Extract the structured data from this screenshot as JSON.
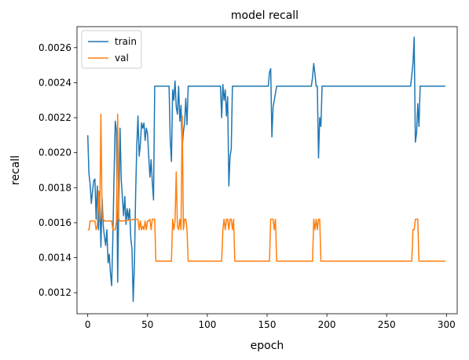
{
  "chart_data": {
    "type": "line",
    "title": "model recall",
    "xlabel": "epoch",
    "ylabel": "recall",
    "xlim": [
      -9,
      309
    ],
    "ylim": [
      0.00108,
      0.00272
    ],
    "x_ticks": [
      0,
      50,
      100,
      150,
      200,
      250,
      300
    ],
    "y_ticks": [
      0.0012,
      0.0014,
      0.0016,
      0.0018,
      0.002,
      0.0022,
      0.0024,
      0.0026
    ],
    "y_tick_labels": [
      "0.0012",
      "0.0014",
      "0.0016",
      "0.0018",
      "0.0020",
      "0.0022",
      "0.0024",
      "0.0026"
    ],
    "grid": false,
    "legend_position": "top-left",
    "series": [
      {
        "name": "train",
        "color": "#1f77b4",
        "points": [
          [
            0,
            0.0021
          ],
          [
            1,
            0.00188
          ],
          [
            2,
            0.00182
          ],
          [
            3,
            0.00171
          ],
          [
            4,
            0.00178
          ],
          [
            5,
            0.00184
          ],
          [
            6,
            0.00185
          ],
          [
            7,
            0.00162
          ],
          [
            8,
            0.00181
          ],
          [
            9,
            0.00156
          ],
          [
            10,
            0.00178
          ],
          [
            11,
            0.00146
          ],
          [
            12,
            0.00174
          ],
          [
            13,
            0.00158
          ],
          [
            14,
            0.00152
          ],
          [
            15,
            0.00147
          ],
          [
            16,
            0.00156
          ],
          [
            17,
            0.00137
          ],
          [
            18,
            0.00142
          ],
          [
            19,
            0.00131
          ],
          [
            20,
            0.00124
          ],
          [
            21,
            0.00152
          ],
          [
            22,
            0.00187
          ],
          [
            23,
            0.00218
          ],
          [
            24,
            0.00212
          ],
          [
            25,
            0.00126
          ],
          [
            26,
            0.00172
          ],
          [
            27,
            0.00214
          ],
          [
            28,
            0.00185
          ],
          [
            29,
            0.00174
          ],
          [
            30,
            0.00164
          ],
          [
            31,
            0.00175
          ],
          [
            32,
            0.00159
          ],
          [
            33,
            0.00168
          ],
          [
            34,
            0.00162
          ],
          [
            35,
            0.00168
          ],
          [
            36,
            0.00151
          ],
          [
            37,
            0.00145
          ],
          [
            38,
            0.00115
          ],
          [
            39,
            0.00135
          ],
          [
            40,
            0.00175
          ],
          [
            41,
            0.00204
          ],
          [
            42,
            0.00221
          ],
          [
            43,
            0.00198
          ],
          [
            44,
            0.00205
          ],
          [
            45,
            0.00217
          ],
          [
            46,
            0.00214
          ],
          [
            47,
            0.00217
          ],
          [
            48,
            0.00207
          ],
          [
            49,
            0.00214
          ],
          [
            50,
            0.00211
          ],
          [
            51,
            0.00198
          ],
          [
            52,
            0.00186
          ],
          [
            53,
            0.00196
          ],
          [
            54,
            0.00183
          ],
          [
            55,
            0.00173
          ],
          [
            56,
            0.00238
          ],
          [
            57,
            0.00238
          ],
          [
            60,
            0.00238
          ],
          [
            65,
            0.00238
          ],
          [
            68,
            0.00238
          ],
          [
            69,
            0.00207
          ],
          [
            70,
            0.00195
          ],
          [
            71,
            0.00236
          ],
          [
            72,
            0.0023
          ],
          [
            73,
            0.00241
          ],
          [
            74,
            0.00226
          ],
          [
            75,
            0.00222
          ],
          [
            76,
            0.00238
          ],
          [
            77,
            0.00218
          ],
          [
            78,
            0.00227
          ],
          [
            79,
            0.00203
          ],
          [
            80,
            0.00212
          ],
          [
            81,
            0.00217
          ],
          [
            82,
            0.00231
          ],
          [
            83,
            0.00216
          ],
          [
            84,
            0.00238
          ],
          [
            85,
            0.00238
          ],
          [
            90,
            0.00238
          ],
          [
            100,
            0.00238
          ],
          [
            110,
            0.00238
          ],
          [
            111,
            0.00238
          ],
          [
            112,
            0.0022
          ],
          [
            113,
            0.00239
          ],
          [
            114,
            0.0023
          ],
          [
            115,
            0.00236
          ],
          [
            116,
            0.00221
          ],
          [
            117,
            0.00232
          ],
          [
            118,
            0.00181
          ],
          [
            119,
            0.00198
          ],
          [
            120,
            0.00202
          ],
          [
            121,
            0.00238
          ],
          [
            122,
            0.00238
          ],
          [
            130,
            0.00238
          ],
          [
            140,
            0.00238
          ],
          [
            150,
            0.00238
          ],
          [
            151,
            0.00238
          ],
          [
            152,
            0.00246
          ],
          [
            153,
            0.00248
          ],
          [
            154,
            0.00209
          ],
          [
            155,
            0.00226
          ],
          [
            156,
            0.0023
          ],
          [
            157,
            0.00234
          ],
          [
            158,
            0.00238
          ],
          [
            160,
            0.00238
          ],
          [
            170,
            0.00238
          ],
          [
            180,
            0.00238
          ],
          [
            187,
            0.00238
          ],
          [
            188,
            0.00243
          ],
          [
            189,
            0.00251
          ],
          [
            190,
            0.00245
          ],
          [
            191,
            0.00238
          ],
          [
            192,
            0.00238
          ],
          [
            193,
            0.00197
          ],
          [
            194,
            0.0022
          ],
          [
            195,
            0.00215
          ],
          [
            196,
            0.00238
          ],
          [
            197,
            0.00238
          ],
          [
            210,
            0.00238
          ],
          [
            230,
            0.00238
          ],
          [
            250,
            0.00238
          ],
          [
            270,
            0.00238
          ],
          [
            271,
            0.00244
          ],
          [
            272,
            0.00251
          ],
          [
            273,
            0.00266
          ],
          [
            274,
            0.00206
          ],
          [
            275,
            0.00211
          ],
          [
            276,
            0.00228
          ],
          [
            277,
            0.00215
          ],
          [
            278,
            0.00238
          ],
          [
            280,
            0.00238
          ],
          [
            290,
            0.00238
          ],
          [
            299,
            0.00238
          ]
        ]
      },
      {
        "name": "val",
        "color": "#ff7f0e",
        "points": [
          [
            0,
            0.00156
          ],
          [
            1,
            0.00156
          ],
          [
            2,
            0.00161
          ],
          [
            3,
            0.00161
          ],
          [
            4,
            0.00161
          ],
          [
            5,
            0.00161
          ],
          [
            6,
            0.00161
          ],
          [
            7,
            0.00156
          ],
          [
            8,
            0.00158
          ],
          [
            9,
            0.00178
          ],
          [
            10,
            0.00161
          ],
          [
            11,
            0.00222
          ],
          [
            12,
            0.00163
          ],
          [
            13,
            0.00162
          ],
          [
            14,
            0.00161
          ],
          [
            15,
            0.00161
          ],
          [
            20,
            0.00161
          ],
          [
            21,
            0.00156
          ],
          [
            22,
            0.00156
          ],
          [
            23,
            0.00156
          ],
          [
            24,
            0.00161
          ],
          [
            25,
            0.00222
          ],
          [
            26,
            0.00162
          ],
          [
            27,
            0.00161
          ],
          [
            28,
            0.00161
          ],
          [
            29,
            0.00161
          ],
          [
            40,
            0.00162
          ],
          [
            41,
            0.00162
          ],
          [
            42,
            0.00162
          ],
          [
            43,
            0.00156
          ],
          [
            44,
            0.00161
          ],
          [
            45,
            0.00156
          ],
          [
            46,
            0.00158
          ],
          [
            47,
            0.00156
          ],
          [
            48,
            0.00161
          ],
          [
            49,
            0.00156
          ],
          [
            50,
            0.00161
          ],
          [
            51,
            0.00161
          ],
          [
            52,
            0.00162
          ],
          [
            53,
            0.00156
          ],
          [
            54,
            0.00162
          ],
          [
            55,
            0.00162
          ],
          [
            56,
            0.00162
          ],
          [
            57,
            0.00138
          ],
          [
            58,
            0.00138
          ],
          [
            60,
            0.00138
          ],
          [
            65,
            0.00138
          ],
          [
            70,
            0.00138
          ],
          [
            71,
            0.00162
          ],
          [
            72,
            0.00156
          ],
          [
            73,
            0.00161
          ],
          [
            74,
            0.00189
          ],
          [
            75,
            0.00158
          ],
          [
            76,
            0.00156
          ],
          [
            77,
            0.00162
          ],
          [
            78,
            0.00156
          ],
          [
            79,
            0.00221
          ],
          [
            80,
            0.00156
          ],
          [
            81,
            0.00162
          ],
          [
            82,
            0.00162
          ],
          [
            83,
            0.00156
          ],
          [
            84,
            0.00138
          ],
          [
            85,
            0.00138
          ],
          [
            90,
            0.00138
          ],
          [
            100,
            0.00138
          ],
          [
            110,
            0.00138
          ],
          [
            112,
            0.00138
          ],
          [
            113,
            0.00156
          ],
          [
            114,
            0.00162
          ],
          [
            115,
            0.00156
          ],
          [
            116,
            0.00162
          ],
          [
            117,
            0.00162
          ],
          [
            118,
            0.00156
          ],
          [
            119,
            0.00162
          ],
          [
            120,
            0.00162
          ],
          [
            121,
            0.00156
          ],
          [
            122,
            0.00162
          ],
          [
            123,
            0.00138
          ],
          [
            124,
            0.00138
          ],
          [
            130,
            0.00138
          ],
          [
            140,
            0.00138
          ],
          [
            150,
            0.00138
          ],
          [
            152,
            0.00138
          ],
          [
            153,
            0.00162
          ],
          [
            154,
            0.00162
          ],
          [
            155,
            0.00162
          ],
          [
            156,
            0.00156
          ],
          [
            157,
            0.00162
          ],
          [
            158,
            0.00138
          ],
          [
            159,
            0.00138
          ],
          [
            170,
            0.00138
          ],
          [
            180,
            0.00138
          ],
          [
            188,
            0.00138
          ],
          [
            189,
            0.00162
          ],
          [
            190,
            0.00156
          ],
          [
            191,
            0.00162
          ],
          [
            192,
            0.00156
          ],
          [
            193,
            0.00162
          ],
          [
            194,
            0.00162
          ],
          [
            195,
            0.00138
          ],
          [
            196,
            0.00138
          ],
          [
            210,
            0.00138
          ],
          [
            230,
            0.00138
          ],
          [
            250,
            0.00138
          ],
          [
            270,
            0.00138
          ],
          [
            271,
            0.00138
          ],
          [
            272,
            0.00156
          ],
          [
            273,
            0.00156
          ],
          [
            274,
            0.00162
          ],
          [
            275,
            0.00162
          ],
          [
            276,
            0.00162
          ],
          [
            277,
            0.00138
          ],
          [
            280,
            0.00138
          ],
          [
            290,
            0.00138
          ],
          [
            299,
            0.00138
          ]
        ]
      }
    ]
  }
}
